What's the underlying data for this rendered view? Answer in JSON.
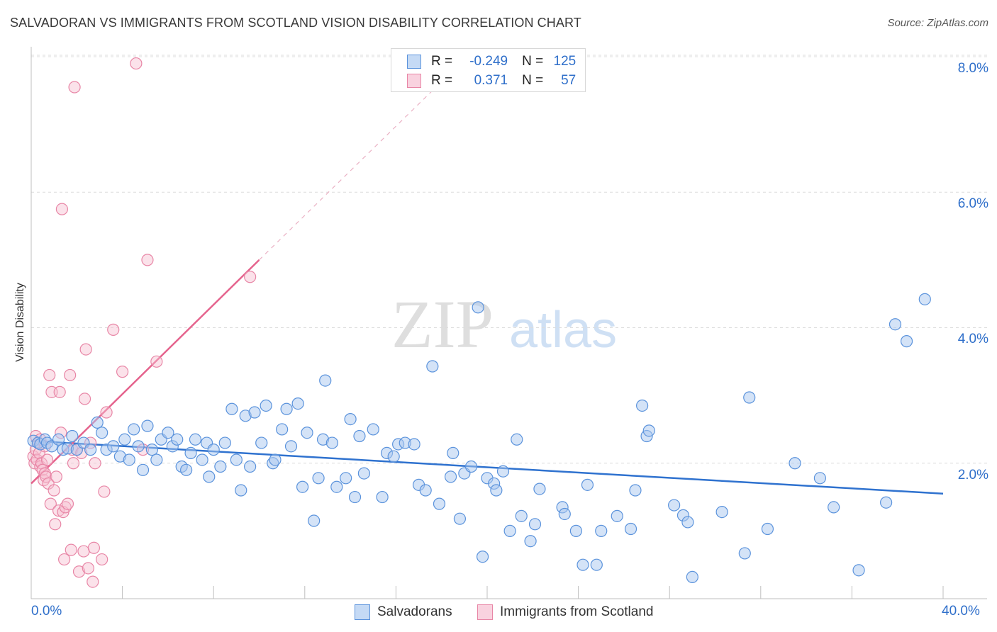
{
  "title": "SALVADORAN VS IMMIGRANTS FROM SCOTLAND VISION DISABILITY CORRELATION CHART",
  "source": "Source: ZipAtlas.com",
  "watermark": {
    "zip": "ZIP",
    "atlas": "atlas"
  },
  "legend": {
    "r_label": "R =",
    "n_label": "N =",
    "rows": [
      {
        "r": "-0.249",
        "n": "125"
      },
      {
        "r": "0.371",
        "n": "57"
      }
    ]
  },
  "colors": {
    "blue_fill": "#a9c8f0",
    "blue_stroke": "#5b93dc",
    "blue_line": "#2f72cf",
    "pink_fill": "#f6bed0",
    "pink_stroke": "#e886a6",
    "pink_line": "#e5638d",
    "grid": "#dcdcdc",
    "tick_text": "#2f6fca"
  },
  "chart_data": {
    "type": "scatter",
    "ylabel": "Vision Disability",
    "xlim": [
      0,
      40
    ],
    "ylim": [
      0,
      8.0
    ],
    "x_tick_labels": [
      "0.0%",
      "40.0%"
    ],
    "y_ticks": [
      2.0,
      4.0,
      6.0,
      8.0
    ],
    "y_tick_labels": [
      "2.0%",
      "4.0%",
      "6.0%",
      "8.0%"
    ],
    "grid": "horizontal dashed",
    "legend_position": "bottom",
    "series": [
      {
        "name": "Salvadorans",
        "color": "#5b93dc",
        "trendline": {
          "x": [
            0,
            40
          ],
          "y": [
            2.33,
            1.55
          ]
        },
        "points": [
          [
            0.1,
            2.33
          ],
          [
            0.3,
            2.3
          ],
          [
            0.4,
            2.28
          ],
          [
            0.6,
            2.35
          ],
          [
            0.7,
            2.3
          ],
          [
            0.9,
            2.25
          ],
          [
            1.2,
            2.35
          ],
          [
            1.4,
            2.2
          ],
          [
            1.6,
            2.22
          ],
          [
            1.8,
            2.4
          ],
          [
            2.0,
            2.2
          ],
          [
            2.3,
            2.3
          ],
          [
            2.6,
            2.2
          ],
          [
            2.9,
            2.6
          ],
          [
            3.1,
            2.45
          ],
          [
            3.3,
            2.2
          ],
          [
            3.6,
            2.25
          ],
          [
            3.9,
            2.1
          ],
          [
            4.1,
            2.35
          ],
          [
            4.3,
            2.05
          ],
          [
            4.5,
            2.5
          ],
          [
            4.7,
            2.25
          ],
          [
            4.9,
            1.9
          ],
          [
            5.1,
            2.55
          ],
          [
            5.3,
            2.2
          ],
          [
            5.5,
            2.05
          ],
          [
            5.7,
            2.35
          ],
          [
            6.0,
            2.45
          ],
          [
            6.2,
            2.25
          ],
          [
            6.4,
            2.35
          ],
          [
            6.6,
            1.95
          ],
          [
            6.8,
            1.9
          ],
          [
            7.0,
            2.15
          ],
          [
            7.2,
            2.35
          ],
          [
            7.5,
            2.05
          ],
          [
            7.7,
            2.3
          ],
          [
            7.8,
            1.8
          ],
          [
            8.0,
            2.2
          ],
          [
            8.3,
            1.95
          ],
          [
            8.5,
            2.3
          ],
          [
            8.8,
            2.8
          ],
          [
            9.0,
            2.05
          ],
          [
            9.2,
            1.6
          ],
          [
            9.4,
            2.7
          ],
          [
            9.6,
            1.95
          ],
          [
            9.8,
            2.75
          ],
          [
            10.1,
            2.3
          ],
          [
            10.3,
            2.85
          ],
          [
            10.6,
            2.0
          ],
          [
            10.7,
            2.05
          ],
          [
            11.0,
            2.5
          ],
          [
            11.2,
            2.8
          ],
          [
            11.4,
            2.25
          ],
          [
            11.7,
            2.88
          ],
          [
            11.9,
            1.65
          ],
          [
            12.1,
            2.45
          ],
          [
            12.4,
            1.15
          ],
          [
            12.6,
            1.78
          ],
          [
            12.8,
            2.35
          ],
          [
            12.9,
            3.22
          ],
          [
            13.2,
            2.3
          ],
          [
            13.4,
            1.65
          ],
          [
            13.8,
            1.78
          ],
          [
            14.0,
            2.65
          ],
          [
            14.2,
            1.5
          ],
          [
            14.4,
            2.4
          ],
          [
            14.6,
            1.85
          ],
          [
            15.0,
            2.5
          ],
          [
            15.4,
            1.5
          ],
          [
            15.6,
            2.15
          ],
          [
            15.9,
            2.1
          ],
          [
            16.1,
            2.28
          ],
          [
            16.4,
            2.3
          ],
          [
            16.8,
            2.28
          ],
          [
            17.0,
            1.68
          ],
          [
            17.3,
            1.6
          ],
          [
            17.6,
            3.43
          ],
          [
            17.9,
            1.4
          ],
          [
            18.4,
            1.8
          ],
          [
            18.5,
            2.15
          ],
          [
            18.8,
            1.18
          ],
          [
            19.0,
            1.85
          ],
          [
            19.3,
            1.95
          ],
          [
            19.6,
            4.3
          ],
          [
            19.8,
            0.62
          ],
          [
            20.0,
            1.78
          ],
          [
            20.3,
            1.7
          ],
          [
            20.4,
            1.6
          ],
          [
            20.7,
            1.88
          ],
          [
            21.0,
            1.0
          ],
          [
            21.3,
            2.35
          ],
          [
            21.5,
            1.22
          ],
          [
            21.9,
            0.85
          ],
          [
            22.1,
            1.1
          ],
          [
            22.3,
            1.62
          ],
          [
            23.3,
            1.35
          ],
          [
            23.4,
            1.25
          ],
          [
            23.9,
            1.0
          ],
          [
            24.2,
            0.5
          ],
          [
            24.4,
            1.68
          ],
          [
            24.8,
            0.5
          ],
          [
            25.0,
            1.0
          ],
          [
            25.7,
            1.22
          ],
          [
            26.3,
            1.03
          ],
          [
            26.5,
            1.6
          ],
          [
            26.8,
            2.85
          ],
          [
            27.0,
            2.4
          ],
          [
            27.1,
            2.48
          ],
          [
            28.2,
            1.38
          ],
          [
            28.6,
            1.23
          ],
          [
            28.8,
            1.13
          ],
          [
            29.0,
            0.32
          ],
          [
            30.3,
            1.28
          ],
          [
            31.3,
            0.67
          ],
          [
            31.5,
            2.97
          ],
          [
            32.3,
            1.03
          ],
          [
            33.5,
            2.0
          ],
          [
            34.6,
            1.78
          ],
          [
            35.2,
            1.35
          ],
          [
            36.3,
            0.42
          ],
          [
            37.5,
            1.42
          ],
          [
            37.9,
            4.05
          ],
          [
            38.4,
            3.8
          ],
          [
            39.2,
            4.42
          ]
        ]
      },
      {
        "name": "Immigrants from Scotland",
        "color": "#e886a6",
        "trendline": {
          "x": [
            0,
            10
          ],
          "y": [
            1.7,
            5.0
          ],
          "dashed_extension": {
            "x": [
              10,
              17.6
            ],
            "y": [
              5.0,
              7.5
            ]
          }
        },
        "points": [
          [
            0.1,
            2.1
          ],
          [
            0.15,
            2.0
          ],
          [
            0.2,
            2.2
          ],
          [
            0.25,
            2.05
          ],
          [
            0.3,
            2.3
          ],
          [
            0.35,
            2.15
          ],
          [
            0.4,
            1.95
          ],
          [
            0.45,
            2.0
          ],
          [
            0.5,
            1.9
          ],
          [
            0.55,
            1.75
          ],
          [
            0.6,
            1.85
          ],
          [
            0.65,
            1.8
          ],
          [
            0.7,
            2.05
          ],
          [
            0.75,
            1.7
          ],
          [
            0.8,
            3.3
          ],
          [
            0.85,
            1.4
          ],
          [
            0.9,
            3.05
          ],
          [
            1.0,
            1.6
          ],
          [
            1.05,
            1.1
          ],
          [
            1.1,
            1.8
          ],
          [
            1.2,
            1.3
          ],
          [
            1.25,
            3.05
          ],
          [
            1.3,
            2.45
          ],
          [
            1.35,
            5.75
          ],
          [
            1.4,
            1.28
          ],
          [
            1.45,
            0.58
          ],
          [
            1.5,
            1.35
          ],
          [
            1.6,
            1.4
          ],
          [
            1.7,
            3.3
          ],
          [
            1.75,
            0.72
          ],
          [
            1.8,
            2.2
          ],
          [
            1.85,
            2.0
          ],
          [
            1.9,
            7.55
          ],
          [
            2.0,
            2.2
          ],
          [
            2.1,
            0.4
          ],
          [
            2.2,
            2.15
          ],
          [
            2.3,
            0.7
          ],
          [
            2.35,
            2.95
          ],
          [
            2.4,
            3.68
          ],
          [
            2.5,
            0.45
          ],
          [
            2.6,
            2.3
          ],
          [
            2.7,
            0.25
          ],
          [
            2.75,
            0.75
          ],
          [
            2.8,
            2.0
          ],
          [
            3.1,
            0.58
          ],
          [
            3.2,
            1.58
          ],
          [
            3.3,
            2.75
          ],
          [
            3.6,
            3.97
          ],
          [
            4.0,
            3.35
          ],
          [
            4.6,
            7.9
          ],
          [
            4.9,
            2.2
          ],
          [
            5.1,
            5.0
          ],
          [
            5.5,
            3.5
          ],
          [
            9.6,
            4.75
          ],
          [
            0.2,
            2.4
          ],
          [
            0.4,
            2.35
          ],
          [
            0.6,
            2.25
          ]
        ]
      }
    ]
  }
}
